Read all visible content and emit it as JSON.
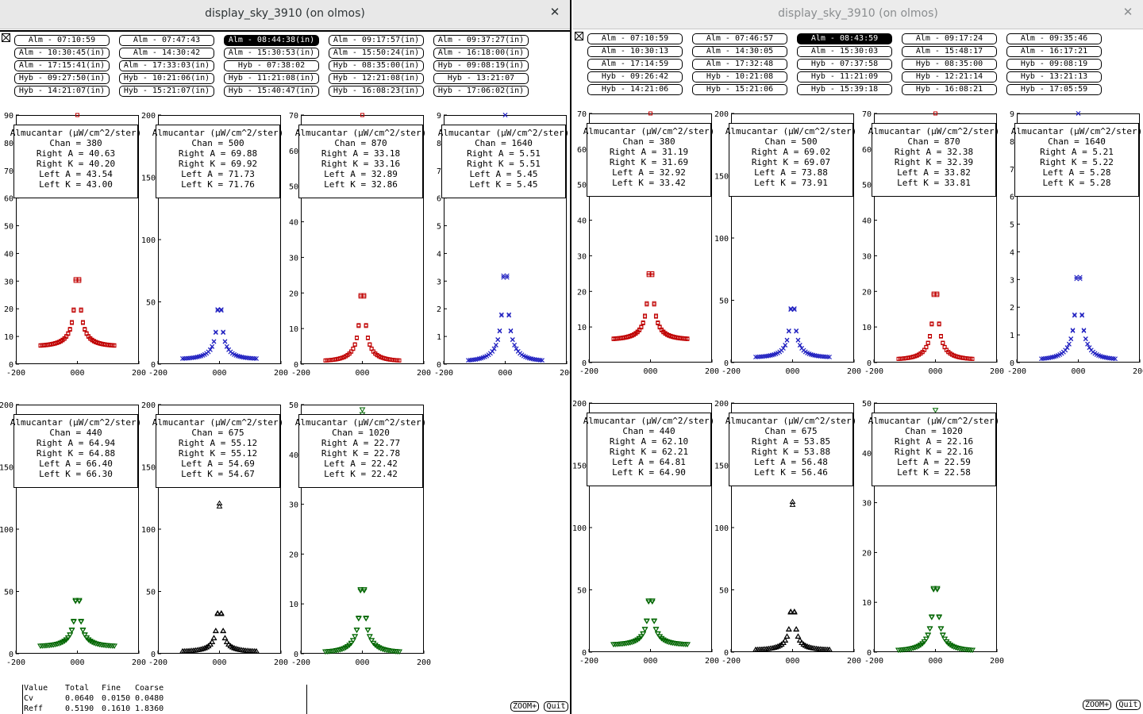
{
  "colors": {
    "red": "#c00000",
    "blue": "#2020c0",
    "green": "#006600",
    "black": "#000000"
  },
  "windows": [
    {
      "title": "display_sky_3910 (on olmos)",
      "close_icon": "close-icon",
      "buttons": [
        {
          "label": "Alm - 07:10:59",
          "active": false
        },
        {
          "label": "Alm - 07:47:43",
          "active": false
        },
        {
          "label": "Alm - 08:44:38(in)",
          "active": true
        },
        {
          "label": "Alm - 09:17:57(in)",
          "active": false
        },
        {
          "label": "Alm - 09:37:27(in)",
          "active": false
        },
        {
          "label": "Alm - 10:30:45(in)",
          "active": false
        },
        {
          "label": "Alm - 14:30:42",
          "active": false
        },
        {
          "label": "Alm - 15:30:53(in)",
          "active": false
        },
        {
          "label": "Alm - 15:50:24(in)",
          "active": false
        },
        {
          "label": "Alm - 16:18:00(in)",
          "active": false
        },
        {
          "label": "Alm - 17:15:41(in)",
          "active": false
        },
        {
          "label": "Alm - 17:33:03(in)",
          "active": false
        },
        {
          "label": "Hyb - 07:38:02",
          "active": false
        },
        {
          "label": "Hyb - 08:35:00(in)",
          "active": false
        },
        {
          "label": "Hyb - 09:08:19(in)",
          "active": false
        },
        {
          "label": "Hyb - 09:27:50(in)",
          "active": false
        },
        {
          "label": "Hyb - 10:21:06(in)",
          "active": false
        },
        {
          "label": "Hyb - 11:21:08(in)",
          "active": false
        },
        {
          "label": "Hyb - 12:21:08(in)",
          "active": false
        },
        {
          "label": "Hyb - 13:21:07",
          "active": false
        },
        {
          "label": "Hyb - 14:21:07(in)",
          "active": false
        },
        {
          "label": "Hyb - 15:21:07(in)",
          "active": false
        },
        {
          "label": "Hyb - 15:40:47(in)",
          "active": false
        },
        {
          "label": "Hyb - 16:08:23(in)",
          "active": false
        },
        {
          "label": "Hyb - 17:06:02(in)",
          "active": false
        }
      ],
      "chart_data": [
        {
          "type": "scatter",
          "title": "Almucantar (µW/cm^2/ster)",
          "chan": "380",
          "right_a": "40.63",
          "right_k": "40.20",
          "left_a": "43.54",
          "left_k": "43.00",
          "ylim": [
            0,
            90
          ],
          "xlim": [
            -200,
            200
          ],
          "xticks": [
            "-200",
            "000",
            "200"
          ],
          "yticks": [
            "0",
            "10",
            "20",
            "30",
            "40",
            "50",
            "60",
            "70",
            "80",
            "90"
          ],
          "ytick_values": [
            0,
            10,
            20,
            30,
            40,
            50,
            60,
            70,
            80,
            90
          ],
          "color": "red",
          "marker": "square",
          "peak": 43,
          "base": 6.5
        },
        {
          "type": "scatter",
          "title": "Almucantar (µW/cm^2/ster)",
          "chan": "500",
          "right_a": "69.88",
          "right_k": "69.92",
          "left_a": "71.73",
          "left_k": "71.76",
          "ylim": [
            0,
            200
          ],
          "xlim": [
            -200,
            200
          ],
          "xticks": [
            "-200",
            "000",
            "200"
          ],
          "yticks": [
            "0",
            "50",
            "100",
            "150",
            "200"
          ],
          "ytick_values": [
            0,
            50,
            100,
            150,
            200
          ],
          "color": "blue",
          "marker": "x",
          "peak": 71,
          "base": 4
        },
        {
          "type": "scatter",
          "title": "Almucantar (µW/cm^2/ster)",
          "chan": "870",
          "right_a": "33.18",
          "right_k": "33.16",
          "left_a": "32.89",
          "left_k": "32.86",
          "ylim": [
            0,
            70
          ],
          "xlim": [
            -200,
            200
          ],
          "xticks": [
            "-200",
            "000",
            "200"
          ],
          "yticks": [
            "0",
            "10",
            "20",
            "30",
            "40",
            "50",
            "60",
            "70"
          ],
          "ytick_values": [
            0,
            10,
            20,
            30,
            40,
            50,
            60,
            70
          ],
          "color": "red",
          "marker": "square",
          "peak": 33,
          "base": 0.8
        },
        {
          "type": "scatter",
          "title": "Almucantar (µW/cm^2/ster)",
          "chan": "1640",
          "right_a": "5.51",
          "right_k": "5.51",
          "left_a": "5.45",
          "left_k": "5.45",
          "ylim": [
            0,
            9
          ],
          "xlim": [
            -200,
            200
          ],
          "xticks": [
            "-200",
            "000",
            "200"
          ],
          "yticks": [
            "0",
            "1",
            "2",
            "3",
            "4",
            "5",
            "6",
            "7",
            "8",
            "9"
          ],
          "ytick_values": [
            0,
            1,
            2,
            3,
            4,
            5,
            6,
            7,
            8,
            9
          ],
          "color": "blue",
          "marker": "x",
          "peak": 5.5,
          "base": 0.1
        },
        {
          "type": "scatter",
          "title": "Almucantar (µW/cm^2/ster)",
          "chan": "440",
          "right_a": "64.94",
          "right_k": "64.88",
          "left_a": "66.40",
          "left_k": "66.30",
          "ylim": [
            0,
            200
          ],
          "xlim": [
            -200,
            200
          ],
          "xticks": [
            "-200",
            "000",
            "200"
          ],
          "yticks": [
            "0",
            "50",
            "100",
            "150",
            "200"
          ],
          "ytick_values": [
            0,
            50,
            100,
            150,
            200
          ],
          "color": "green",
          "marker": "triangle-down",
          "peak": 66,
          "base": 6
        },
        {
          "type": "scatter",
          "title": "Almucantar (µW/cm^2/ster)",
          "chan": "675",
          "right_a": "55.12",
          "right_k": "55.12",
          "left_a": "54.69",
          "left_k": "54.67",
          "ylim": [
            0,
            200
          ],
          "xlim": [
            -200,
            200
          ],
          "xticks": [
            "-200",
            "000",
            "200"
          ],
          "yticks": [
            "0",
            "50",
            "100",
            "150",
            "200"
          ],
          "ytick_values": [
            0,
            50,
            100,
            150,
            200
          ],
          "color": "black",
          "marker": "triangle-up",
          "peak": 55,
          "base": 1.5
        },
        {
          "type": "scatter",
          "title": "Almucantar (µW/cm^2/ster)",
          "chan": "1020",
          "right_a": "22.77",
          "right_k": "22.78",
          "left_a": "22.42",
          "left_k": "22.42",
          "ylim": [
            0,
            50
          ],
          "xlim": [
            -200,
            200
          ],
          "xticks": [
            "-200",
            "000",
            "200"
          ],
          "yticks": [
            "0",
            "10",
            "20",
            "30",
            "40",
            "50"
          ],
          "ytick_values": [
            0,
            10,
            20,
            30,
            40,
            50
          ],
          "color": "green",
          "marker": "triangle-down",
          "peak": 22.5,
          "base": 0.3
        }
      ],
      "stats": {
        "headers": [
          "Value",
          "Total",
          "Fine",
          "Coarse"
        ],
        "rows": [
          [
            "Cv",
            "0.0640",
            "0.0150",
            "0.0480"
          ],
          [
            "Reff",
            "0.5190",
            "0.1610",
            "1.8360"
          ]
        ]
      },
      "zoom_label": "ZOOM+",
      "quit_label": "Quit"
    },
    {
      "title": "display_sky_3910 (on olmos)",
      "close_icon": "close-icon",
      "buttons": [
        {
          "label": "Alm - 07:10:59",
          "active": false
        },
        {
          "label": "Alm - 07:46:57",
          "active": false
        },
        {
          "label": "Alm - 08:43:59",
          "active": true
        },
        {
          "label": "Alm - 09:17:24",
          "active": false
        },
        {
          "label": "Alm - 09:35:46",
          "active": false
        },
        {
          "label": "Alm - 10:30:13",
          "active": false
        },
        {
          "label": "Alm - 14:30:05",
          "active": false
        },
        {
          "label": "Alm - 15:30:03",
          "active": false
        },
        {
          "label": "Alm - 15:48:17",
          "active": false
        },
        {
          "label": "Alm - 16:17:21",
          "active": false
        },
        {
          "label": "Alm - 17:14:59",
          "active": false
        },
        {
          "label": "Alm - 17:32:48",
          "active": false
        },
        {
          "label": "Hyb - 07:37:58",
          "active": false
        },
        {
          "label": "Hyb - 08:35:00",
          "active": false
        },
        {
          "label": "Hyb - 09:08:19",
          "active": false
        },
        {
          "label": "Hyb - 09:26:42",
          "active": false
        },
        {
          "label": "Hyb - 10:21:08",
          "active": false
        },
        {
          "label": "Hyb - 11:21:09",
          "active": false
        },
        {
          "label": "Hyb - 12:21:14",
          "active": false
        },
        {
          "label": "Hyb - 13:21:13",
          "active": false
        },
        {
          "label": "Hyb - 14:21:06",
          "active": false
        },
        {
          "label": "Hyb - 15:21:06",
          "active": false
        },
        {
          "label": "Hyb - 15:39:18",
          "active": false
        },
        {
          "label": "Hyb - 16:08:21",
          "active": false
        },
        {
          "label": "Hyb - 17:05:59",
          "active": false
        }
      ],
      "chart_data": [
        {
          "type": "scatter",
          "title": "Almucantar (µW/cm^2/ster)",
          "chan": "380",
          "right_a": "31.19",
          "right_k": "31.69",
          "left_a": "32.92",
          "left_k": "33.42",
          "ylim": [
            0,
            70
          ],
          "xlim": [
            -200,
            200
          ],
          "xticks": [
            "-200",
            "000",
            "200"
          ],
          "yticks": [
            "0",
            "10",
            "20",
            "30",
            "40",
            "50",
            "60",
            "70"
          ],
          "ytick_values": [
            0,
            10,
            20,
            30,
            40,
            50,
            60,
            70
          ],
          "color": "red",
          "marker": "square",
          "peak": 33,
          "base": 6.5
        },
        {
          "type": "scatter",
          "title": "Almucantar (µW/cm^2/ster)",
          "chan": "500",
          "right_a": "69.02",
          "right_k": "69.07",
          "left_a": "73.88",
          "left_k": "73.91",
          "ylim": [
            0,
            200
          ],
          "xlim": [
            -200,
            200
          ],
          "xticks": [
            "-200",
            "000",
            "200"
          ],
          "yticks": [
            "0",
            "50",
            "100",
            "150",
            "200"
          ],
          "ytick_values": [
            0,
            50,
            100,
            150,
            200
          ],
          "color": "blue",
          "marker": "x",
          "peak": 70,
          "base": 4
        },
        {
          "type": "scatter",
          "title": "Almucantar (µW/cm^2/ster)",
          "chan": "870",
          "right_a": "32.38",
          "right_k": "32.39",
          "left_a": "33.82",
          "left_k": "33.81",
          "ylim": [
            0,
            70
          ],
          "xlim": [
            -200,
            200
          ],
          "xticks": [
            "-200",
            "000",
            "200"
          ],
          "yticks": [
            "0",
            "10",
            "20",
            "30",
            "40",
            "50",
            "60",
            "70"
          ],
          "ytick_values": [
            0,
            10,
            20,
            30,
            40,
            50,
            60,
            70
          ],
          "color": "red",
          "marker": "square",
          "peak": 33,
          "base": 0.8
        },
        {
          "type": "scatter",
          "title": "Almucantar (µW/cm^2/ster)",
          "chan": "1640",
          "right_a": "5.21",
          "right_k": "5.22",
          "left_a": "5.28",
          "left_k": "5.28",
          "ylim": [
            0,
            9
          ],
          "xlim": [
            -200,
            200
          ],
          "xticks": [
            "-200",
            "000",
            "200"
          ],
          "yticks": [
            "0",
            "1",
            "2",
            "3",
            "4",
            "5",
            "6",
            "7",
            "8",
            "9"
          ],
          "ytick_values": [
            0,
            1,
            2,
            3,
            4,
            5,
            6,
            7,
            8,
            9
          ],
          "color": "blue",
          "marker": "x",
          "peak": 5.3,
          "base": 0.1
        },
        {
          "type": "scatter",
          "title": "Almucantar (µW/cm^2/ster)",
          "chan": "440",
          "right_a": "62.10",
          "right_k": "62.21",
          "left_a": "64.81",
          "left_k": "64.90",
          "ylim": [
            0,
            200
          ],
          "xlim": [
            -200,
            200
          ],
          "xticks": [
            "-200",
            "000",
            "200"
          ],
          "yticks": [
            "0",
            "50",
            "100",
            "150",
            "200"
          ],
          "ytick_values": [
            0,
            50,
            100,
            150,
            200
          ],
          "color": "green",
          "marker": "triangle-down",
          "peak": 63,
          "base": 6
        },
        {
          "type": "scatter",
          "title": "Almucantar (µW/cm^2/ster)",
          "chan": "675",
          "right_a": "53.85",
          "right_k": "53.88",
          "left_a": "56.48",
          "left_k": "56.46",
          "ylim": [
            0,
            200
          ],
          "xlim": [
            -200,
            200
          ],
          "xticks": [
            "-200",
            "000",
            "200"
          ],
          "yticks": [
            "0",
            "50",
            "100",
            "150",
            "200"
          ],
          "ytick_values": [
            0,
            50,
            100,
            150,
            200
          ],
          "color": "black",
          "marker": "triangle-up",
          "peak": 55,
          "base": 1.5
        },
        {
          "type": "scatter",
          "title": "Almucantar (µW/cm^2/ster)",
          "chan": "1020",
          "right_a": "22.16",
          "right_k": "22.16",
          "left_a": "22.59",
          "left_k": "22.58",
          "ylim": [
            0,
            50
          ],
          "xlim": [
            -200,
            200
          ],
          "xticks": [
            "-200",
            "000",
            "200"
          ],
          "yticks": [
            "0",
            "10",
            "20",
            "30",
            "40",
            "50"
          ],
          "ytick_values": [
            0,
            10,
            20,
            30,
            40,
            50
          ],
          "color": "green",
          "marker": "triangle-down",
          "peak": 22.3,
          "base": 0.3
        }
      ],
      "zoom_label": "ZOOM+",
      "quit_label": "Quit"
    }
  ]
}
